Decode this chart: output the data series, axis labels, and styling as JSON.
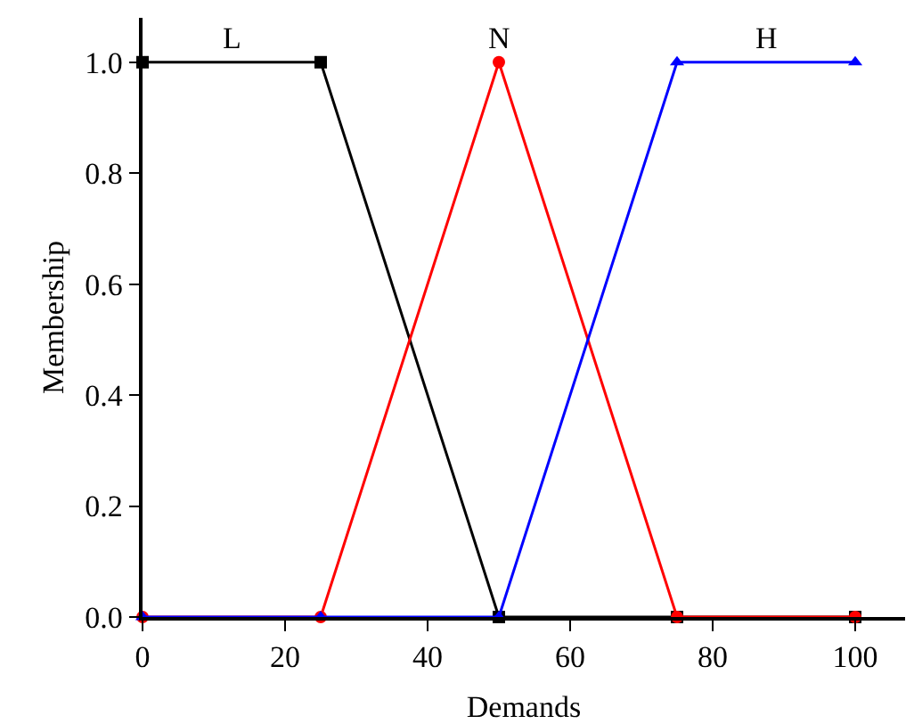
{
  "chart_data": {
    "type": "line",
    "xlabel": "Demands",
    "ylabel": "Membership",
    "x": [
      0,
      25,
      50,
      75,
      100
    ],
    "series": [
      {
        "name": "L",
        "color": "#000000",
        "marker": "square",
        "values": [
          1,
          1,
          0,
          0,
          0
        ]
      },
      {
        "name": "N",
        "color": "#ff0000",
        "marker": "circle",
        "values": [
          0,
          0,
          1,
          0,
          0
        ]
      },
      {
        "name": "H",
        "color": "#0000ff",
        "marker": "triangle",
        "values": [
          0,
          0,
          0,
          1,
          1
        ]
      }
    ],
    "xlim": [
      0,
      107
    ],
    "xticks": [
      0,
      20,
      40,
      60,
      80,
      100
    ],
    "ylim": [
      0,
      1.08
    ],
    "yticks": [
      {
        "value": 0,
        "label": "0.0"
      },
      {
        "value": 0.2,
        "label": "0.2"
      },
      {
        "value": 0.4,
        "label": "0.4"
      },
      {
        "value": 0.6,
        "label": "0.6"
      },
      {
        "value": 0.8,
        "label": "0.8"
      },
      {
        "value": 1,
        "label": "1.0"
      }
    ],
    "grid": false,
    "legend": false,
    "line_style": "solid"
  }
}
